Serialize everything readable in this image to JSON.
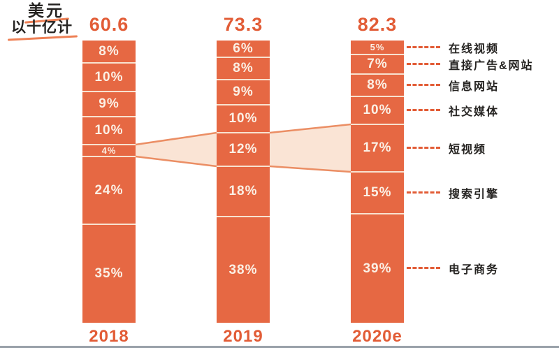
{
  "title": {
    "line1": "美元",
    "line2": "以十亿计"
  },
  "colors": {
    "bar": "#E66843",
    "bar_text": "#FBF0E5",
    "divider": "#F8E2D0",
    "accent": "#E25C36",
    "ink": "#252321",
    "underline": "#EE8055",
    "band_fill": "#FAE4D5",
    "band_stroke": "#EB8E64",
    "baseline": "#9AA2AA"
  },
  "chart_data": {
    "type": "bar",
    "variant": "100-percent-stacked-column-with-flow-highlight",
    "title": "美元以十亿计",
    "grid": false,
    "legend_position": "right-leader-labels",
    "ylim": [
      0,
      100
    ],
    "value_suffix": "%",
    "categories": [
      "在线视频",
      "直接广告&网站",
      "信息网站",
      "社交媒体",
      "短视频",
      "搜索引擎",
      "电子商务"
    ],
    "highlight_index": 4,
    "highlighted_category": "短视频",
    "bars": [
      {
        "year": "2018",
        "total": "60.6",
        "values_pct": [
          8,
          10,
          9,
          10,
          4,
          24,
          35
        ]
      },
      {
        "year": "2019",
        "total": "73.3",
        "values_pct": [
          6,
          8,
          9,
          10,
          12,
          18,
          38
        ]
      },
      {
        "year": "2020e",
        "total": "82.3",
        "values_pct": [
          5,
          7,
          8,
          10,
          17,
          15,
          39
        ]
      }
    ]
  }
}
